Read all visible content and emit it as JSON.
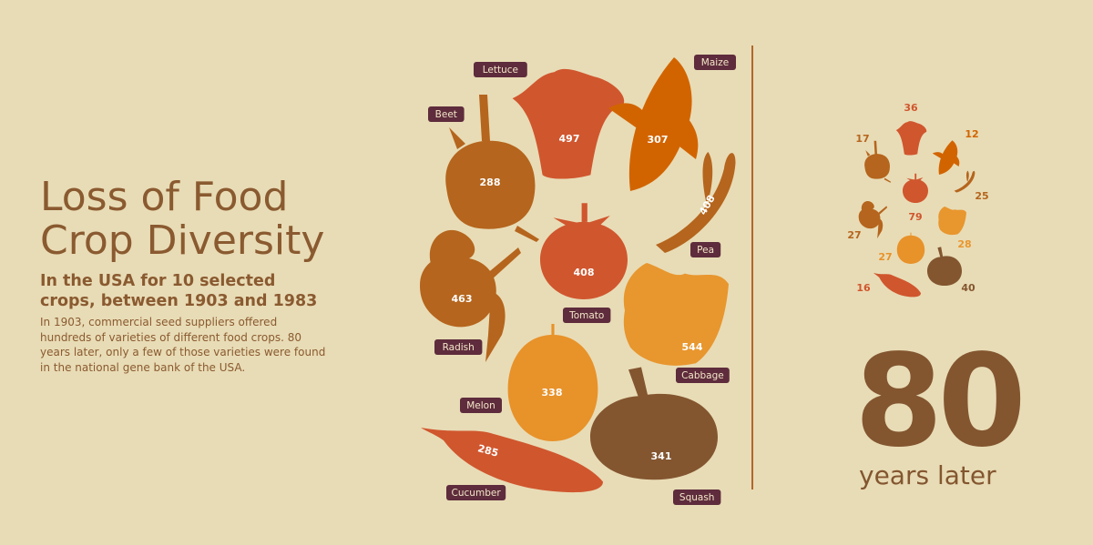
{
  "header": {
    "title_line1": "Loss of Food",
    "title_line2": "Crop Diversity",
    "subtitle": "In the USA for 10 selected crops, between 1903 and 1983",
    "description": "In 1903, commercial seed suppliers offered hundreds of varieties of different food crops. 80 years later, only a few of those varieties were found in the national gene bank of the USA."
  },
  "later": {
    "number": "80",
    "label": "years later"
  },
  "colors": {
    "background": "#e8dcb6",
    "text": "#8a5a30",
    "label_bg": "#5e2c3c",
    "divider": "#b0682a"
  },
  "chart_data": {
    "type": "pictogram",
    "title": "Loss of Food Crop Diversity",
    "series": [
      {
        "name": "1903"
      },
      {
        "name": "1983"
      }
    ],
    "crops": [
      {
        "name": "Beet",
        "v1903": 288,
        "v1983": 17,
        "color": "#b5651d",
        "icon": "beet-icon"
      },
      {
        "name": "Lettuce",
        "v1903": 497,
        "v1983": 36,
        "color": "#d0562e",
        "icon": "lettuce-icon"
      },
      {
        "name": "Maize",
        "v1903": 307,
        "v1983": 12,
        "color": "#d26400",
        "icon": "maize-icon"
      },
      {
        "name": "Pea",
        "v1903": 408,
        "v1983": 25,
        "color": "#b5651d",
        "icon": "pea-icon"
      },
      {
        "name": "Tomato",
        "v1903": 408,
        "v1983": 79,
        "color": "#d0562e",
        "icon": "tomato-icon"
      },
      {
        "name": "Radish",
        "v1903": 463,
        "v1983": 27,
        "color": "#b5651d",
        "icon": "radish-icon"
      },
      {
        "name": "Cabbage",
        "v1903": 544,
        "v1983": 28,
        "color": "#e8962e",
        "icon": "cabbage-icon"
      },
      {
        "name": "Melon",
        "v1903": 338,
        "v1983": 27,
        "color": "#e8922a",
        "icon": "melon-icon"
      },
      {
        "name": "Squash",
        "v1903": 341,
        "v1983": 40,
        "color": "#835630",
        "icon": "squash-icon"
      },
      {
        "name": "Cucumber",
        "v1903": 285,
        "v1983": 16,
        "color": "#d0562e",
        "icon": "cucumber-icon"
      }
    ]
  }
}
